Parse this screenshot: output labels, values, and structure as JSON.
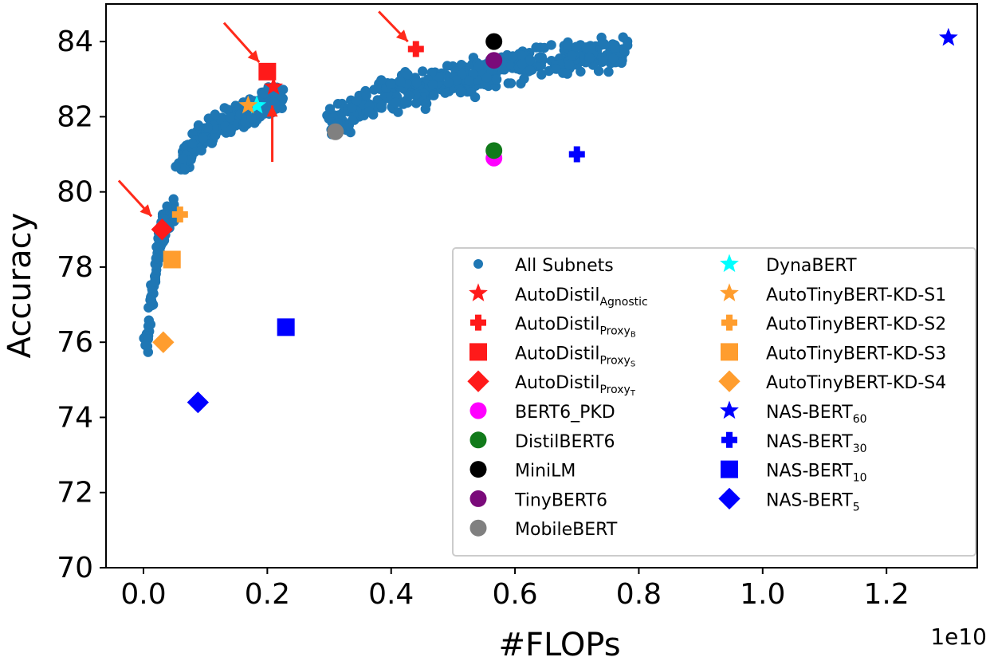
{
  "chart_data": {
    "type": "scatter",
    "title": "",
    "xlabel": "#FLOPs",
    "ylabel": "Accuracy",
    "x_offset_label": "1e10",
    "x_scale": 10000000000.0,
    "xlim": [
      -0.06,
      1.3
    ],
    "ylim": [
      70,
      85
    ],
    "x_ticks": [
      0.0,
      0.2,
      0.4,
      0.6,
      0.8,
      1.0,
      1.2
    ],
    "x_tick_labels": [
      "0.0",
      "0.2",
      "0.4",
      "0.6",
      "0.8",
      "1.0",
      "1.2"
    ],
    "y_ticks": [
      70,
      72,
      74,
      76,
      78,
      80,
      82,
      84
    ],
    "y_tick_labels": [
      "70",
      "72",
      "74",
      "76",
      "78",
      "80",
      "82",
      "84"
    ],
    "grid": false,
    "legend_position": "lower-right",
    "all_subnets": {
      "name": "All Subnets",
      "color": "#1f77b4",
      "marker": "circle",
      "clusters": [
        {
          "x": [
            0.003,
            0.012,
            0.022,
            0.03,
            0.038,
            0.048
          ],
          "y": [
            75.8,
            77.0,
            78.2,
            79.0,
            79.3,
            79.5
          ],
          "n": 130
        },
        {
          "x": [
            0.06,
            0.1,
            0.14,
            0.18,
            0.2,
            0.22
          ],
          "y": [
            80.9,
            81.5,
            81.9,
            82.2,
            82.4,
            82.5
          ],
          "n": 260
        },
        {
          "x": [
            0.3,
            0.38,
            0.46,
            0.54,
            0.62,
            0.7,
            0.78
          ],
          "y": [
            81.8,
            82.5,
            82.8,
            83.1,
            83.4,
            83.6,
            83.7
          ],
          "n": 420
        }
      ]
    },
    "models": [
      {
        "name": "AutoDistil",
        "sub": "Agnostic",
        "sub_style": "sub",
        "color": "#ff1a1a",
        "marker": "star",
        "x": 0.21,
        "y": 82.8
      },
      {
        "name": "AutoDistil",
        "sub": "Proxy",
        "sub2": "B",
        "sub_style": "sub",
        "color": "#ff1a1a",
        "marker": "plus",
        "x": 0.44,
        "y": 83.8
      },
      {
        "name": "AutoDistil",
        "sub": "Proxy",
        "sub2": "S",
        "sub_style": "sub",
        "color": "#ff1a1a",
        "marker": "square",
        "x": 0.2,
        "y": 83.2
      },
      {
        "name": "AutoDistil",
        "sub": "Proxy",
        "sub2": "T",
        "sub_style": "sub",
        "color": "#ff1a1a",
        "marker": "diamond",
        "x": 0.03,
        "y": 79.0
      },
      {
        "name": "BERT6_PKD",
        "sub": "",
        "color": "#ff00ff",
        "marker": "circle",
        "x": 0.566,
        "y": 80.9
      },
      {
        "name": "DistilBERT6",
        "sub": "",
        "color": "#117a1a",
        "marker": "circle",
        "x": 0.566,
        "y": 81.1
      },
      {
        "name": "MiniLM",
        "sub": "",
        "color": "#000000",
        "marker": "circle",
        "x": 0.566,
        "y": 84.0
      },
      {
        "name": "TinyBERT6",
        "sub": "",
        "color": "#7a0a7a",
        "marker": "circle",
        "x": 0.566,
        "y": 83.5
      },
      {
        "name": "MobileBERT",
        "sub": "",
        "color": "#808080",
        "marker": "circle",
        "x": 0.31,
        "y": 81.6
      },
      {
        "name": "DynaBERT",
        "sub": "",
        "color": "#00ffff",
        "marker": "star",
        "x": 0.183,
        "y": 82.3
      },
      {
        "name": "AutoTinyBERT-KD-S1",
        "sub": "",
        "color": "#ff9d2e",
        "marker": "star",
        "x": 0.169,
        "y": 82.3
      },
      {
        "name": "AutoTinyBERT-KD-S2",
        "sub": "",
        "color": "#ff9d2e",
        "marker": "plus",
        "x": 0.059,
        "y": 79.4
      },
      {
        "name": "AutoTinyBERT-KD-S3",
        "sub": "",
        "color": "#ff9d2e",
        "marker": "square",
        "x": 0.046,
        "y": 78.2
      },
      {
        "name": "AutoTinyBERT-KD-S4",
        "sub": "",
        "color": "#ff9d2e",
        "marker": "diamond",
        "x": 0.032,
        "y": 76.0
      },
      {
        "name": "NAS-BERT",
        "sub": "60",
        "sub_style": "sub",
        "color": "#0000ff",
        "marker": "star",
        "x": 1.3,
        "y": 84.1
      },
      {
        "name": "NAS-BERT",
        "sub": "30",
        "sub_style": "sub",
        "color": "#0000ff",
        "marker": "plus",
        "x": 0.7,
        "y": 81.0
      },
      {
        "name": "NAS-BERT",
        "sub": "10",
        "sub_style": "sub",
        "color": "#0000ff",
        "marker": "square",
        "x": 0.23,
        "y": 76.4
      },
      {
        "name": "NAS-BERT",
        "sub": "5",
        "sub_style": "sub",
        "color": "#0000ff",
        "marker": "diamond",
        "x": 0.088,
        "y": 74.4
      }
    ],
    "arrows": [
      {
        "from": [
          -0.04,
          80.3
        ],
        "to": [
          0.013,
          79.35
        ]
      },
      {
        "from": [
          0.13,
          84.5
        ],
        "to": [
          0.187,
          83.45
        ]
      },
      {
        "from": [
          0.208,
          80.8
        ],
        "to": [
          0.208,
          82.3
        ]
      },
      {
        "from": [
          0.38,
          84.8
        ],
        "to": [
          0.427,
          84.0
        ]
      }
    ],
    "arrow_color": "#ff2a1a"
  }
}
